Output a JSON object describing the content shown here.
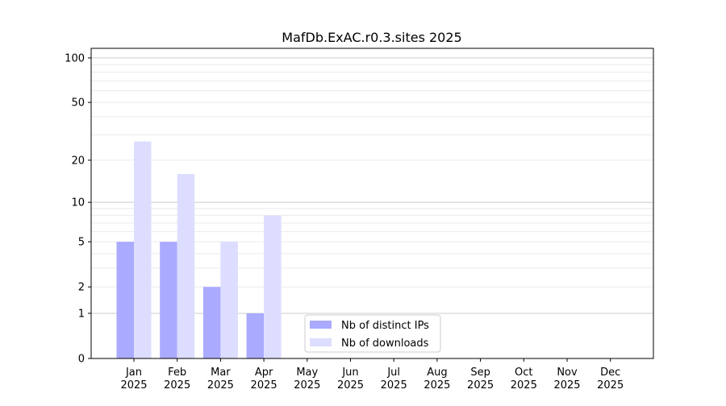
{
  "chart_data": {
    "type": "bar",
    "title": "MafDb.ExAC.r0.3.sites 2025",
    "xlabel": "",
    "ylabel": "",
    "yscale": "log(1+y)",
    "ylim": [
      0,
      116
    ],
    "yticks": [
      0,
      1,
      2,
      5,
      10,
      20,
      50,
      100
    ],
    "grid": true,
    "legend_position": "lower-center",
    "categories": [
      "Jan\n2025",
      "Feb\n2025",
      "Mar\n2025",
      "Apr\n2025",
      "May\n2025",
      "Jun\n2025",
      "Jul\n2025",
      "Aug\n2025",
      "Sep\n2025",
      "Oct\n2025",
      "Nov\n2025",
      "Dec\n2025"
    ],
    "series": [
      {
        "name": "Nb of distinct IPs",
        "color": "#aaaaff",
        "values": [
          5,
          5,
          2,
          1,
          0,
          0,
          0,
          0,
          0,
          0,
          0,
          0
        ]
      },
      {
        "name": "Nb of downloads",
        "color": "#ddddff",
        "values": [
          27,
          16,
          5,
          8,
          0,
          0,
          0,
          0,
          0,
          0,
          0,
          0
        ]
      }
    ]
  }
}
